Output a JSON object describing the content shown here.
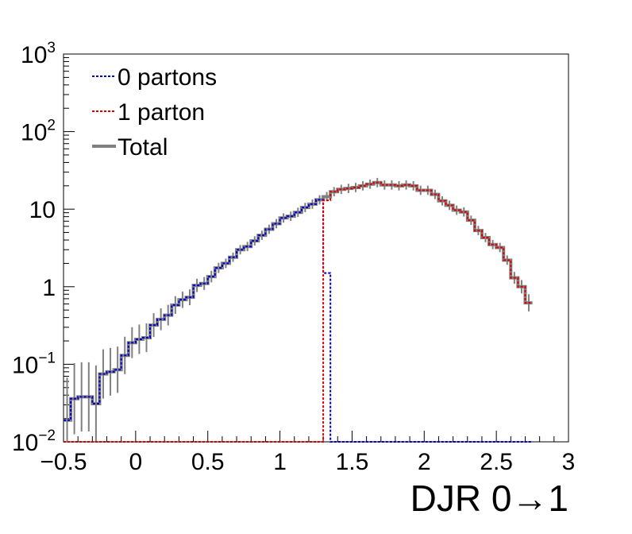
{
  "chart_data": {
    "type": "line",
    "xlabel": "DJR 0→1",
    "ylabel": "",
    "xlim": [
      -0.5,
      3.0
    ],
    "ylim": [
      0.01,
      1000
    ],
    "yscale": "log",
    "grid": false,
    "legend_position": "top-left",
    "x_ticks": [
      {
        "value": -0.5,
        "label": "−0.5"
      },
      {
        "value": 0,
        "label": "0"
      },
      {
        "value": 0.5,
        "label": "0.5"
      },
      {
        "value": 1,
        "label": "1"
      },
      {
        "value": 1.5,
        "label": "1.5"
      },
      {
        "value": 2,
        "label": "2"
      },
      {
        "value": 2.5,
        "label": "2.5"
      },
      {
        "value": 3,
        "label": "3"
      }
    ],
    "y_ticks": [
      {
        "value": 0.01,
        "base": "10",
        "exp": "−2",
        "label": ""
      },
      {
        "value": 0.1,
        "base": "10",
        "exp": "−1",
        "label": ""
      },
      {
        "value": 1,
        "base": "",
        "exp": "",
        "label": "1"
      },
      {
        "value": 10,
        "base": "",
        "exp": "",
        "label": "10"
      },
      {
        "value": 100,
        "base": "10",
        "exp": "2",
        "label": ""
      },
      {
        "value": 1000,
        "base": "10",
        "exp": "3",
        "label": ""
      }
    ],
    "bin_width": 0.05,
    "bin_start": -0.5,
    "series": [
      {
        "name": "Total",
        "color": "#808080",
        "style": "solid",
        "values": [
          0.019,
          0.036,
          0.038,
          0.038,
          0.031,
          0.075,
          0.08,
          0.085,
          0.13,
          0.19,
          0.21,
          0.22,
          0.32,
          0.38,
          0.43,
          0.58,
          0.68,
          0.73,
          1.04,
          1.1,
          1.35,
          1.75,
          2.0,
          2.4,
          3.0,
          3.3,
          3.9,
          4.6,
          5.5,
          6.5,
          7.7,
          8.1,
          9.1,
          10.5,
          11.6,
          13.2,
          14.5,
          16.8,
          18.0,
          18.5,
          19.0,
          20.0,
          21.0,
          22.0,
          20.5,
          20.5,
          20.0,
          20.5,
          20.0,
          17.5,
          17.5,
          15.5,
          12.8,
          11.2,
          9.7,
          9.2,
          7.2,
          5.3,
          4.3,
          3.5,
          3.2,
          2.2,
          1.3,
          1.0,
          0.62
        ]
      },
      {
        "name": "0 partons",
        "color": "#0000cc",
        "style": "dotted",
        "values": [
          0.019,
          0.036,
          0.038,
          0.038,
          0.031,
          0.075,
          0.08,
          0.085,
          0.13,
          0.19,
          0.21,
          0.22,
          0.32,
          0.38,
          0.43,
          0.58,
          0.68,
          0.73,
          1.04,
          1.1,
          1.35,
          1.75,
          2.0,
          2.4,
          3.0,
          3.3,
          3.9,
          4.6,
          5.5,
          6.5,
          7.7,
          8.1,
          9.1,
          10.5,
          11.6,
          13.2,
          1.5,
          0,
          0,
          0,
          0,
          0,
          0,
          0,
          0,
          0,
          0,
          0,
          0,
          0,
          0,
          0,
          0,
          0,
          0,
          0,
          0,
          0,
          0,
          0,
          0,
          0,
          0,
          0,
          0
        ]
      },
      {
        "name": "1 parton",
        "color": "#dd0000",
        "style": "dotted",
        "values": [
          0,
          0,
          0,
          0,
          0,
          0,
          0,
          0,
          0,
          0,
          0,
          0,
          0,
          0,
          0,
          0,
          0,
          0,
          0,
          0,
          0,
          0,
          0,
          0,
          0,
          0,
          0,
          0,
          0,
          0,
          0,
          0,
          0,
          0,
          0,
          0,
          13.0,
          16.8,
          18.0,
          18.5,
          19.0,
          20.0,
          21.0,
          22.0,
          20.5,
          20.5,
          20.0,
          20.5,
          20.0,
          17.5,
          17.5,
          15.5,
          12.8,
          11.2,
          9.7,
          9.2,
          7.2,
          5.3,
          4.3,
          3.5,
          3.2,
          2.2,
          1.3,
          1.0,
          0.62
        ]
      }
    ]
  }
}
